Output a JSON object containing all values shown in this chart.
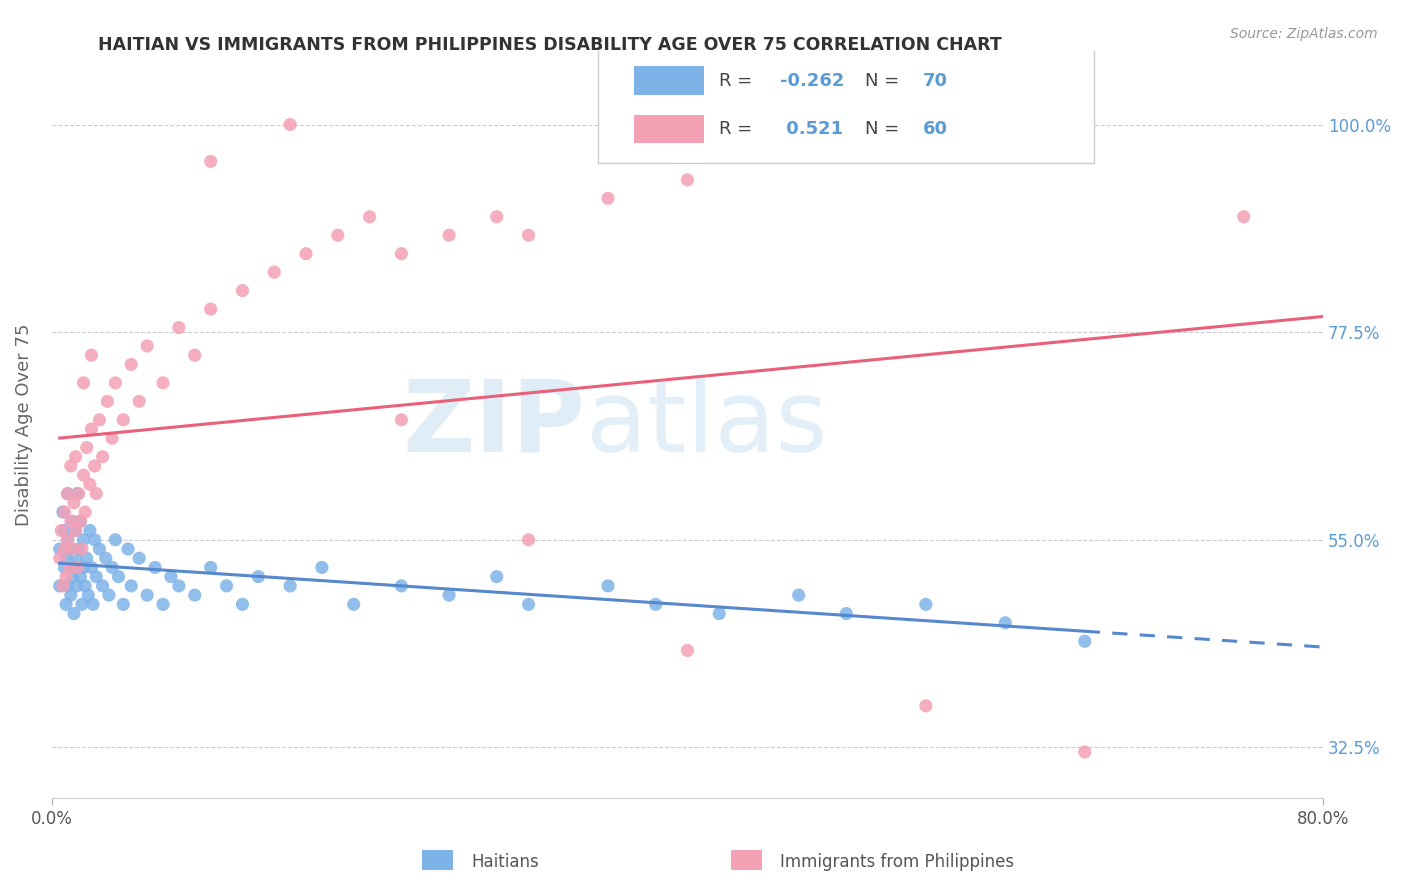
{
  "title": "HAITIAN VS IMMIGRANTS FROM PHILIPPINES DISABILITY AGE OVER 75 CORRELATION CHART",
  "source": "Source: ZipAtlas.com",
  "ylabel": "Disability Age Over 75",
  "ytick_labels": [
    "32.5%",
    "55.0%",
    "77.5%",
    "100.0%"
  ],
  "ytick_values": [
    0.325,
    0.55,
    0.775,
    1.0
  ],
  "xlim": [
    0.0,
    0.8
  ],
  "ylim": [
    0.27,
    1.08
  ],
  "haitian_R": -0.262,
  "haitian_N": 70,
  "philippines_R": 0.521,
  "philippines_N": 60,
  "haitian_color": "#7eb3e8",
  "philippines_color": "#f4a0b5",
  "haitian_line_color": "#5588cc",
  "philippines_line_color": "#e8607a",
  "watermark_text": "ZIPatlas",
  "legend_haitian": "Haitians",
  "legend_philippines": "Immigrants from Philippines",
  "haitian_x": [
    0.005,
    0.005,
    0.007,
    0.008,
    0.008,
    0.009,
    0.009,
    0.01,
    0.01,
    0.01,
    0.012,
    0.012,
    0.013,
    0.013,
    0.014,
    0.014,
    0.015,
    0.015,
    0.016,
    0.016,
    0.017,
    0.018,
    0.018,
    0.019,
    0.02,
    0.02,
    0.021,
    0.022,
    0.023,
    0.024,
    0.025,
    0.026,
    0.027,
    0.028,
    0.03,
    0.032,
    0.034,
    0.036,
    0.038,
    0.04,
    0.042,
    0.045,
    0.048,
    0.05,
    0.055,
    0.06,
    0.065,
    0.07,
    0.075,
    0.08,
    0.09,
    0.1,
    0.11,
    0.12,
    0.13,
    0.15,
    0.17,
    0.19,
    0.22,
    0.25,
    0.28,
    0.3,
    0.35,
    0.38,
    0.42,
    0.47,
    0.5,
    0.55,
    0.6,
    0.65
  ],
  "haitian_y": [
    0.54,
    0.5,
    0.58,
    0.52,
    0.56,
    0.48,
    0.53,
    0.5,
    0.55,
    0.6,
    0.49,
    0.54,
    0.51,
    0.57,
    0.52,
    0.47,
    0.56,
    0.53,
    0.5,
    0.6,
    0.54,
    0.51,
    0.57,
    0.48,
    0.52,
    0.55,
    0.5,
    0.53,
    0.49,
    0.56,
    0.52,
    0.48,
    0.55,
    0.51,
    0.54,
    0.5,
    0.53,
    0.49,
    0.52,
    0.55,
    0.51,
    0.48,
    0.54,
    0.5,
    0.53,
    0.49,
    0.52,
    0.48,
    0.51,
    0.5,
    0.49,
    0.52,
    0.5,
    0.48,
    0.51,
    0.5,
    0.52,
    0.48,
    0.5,
    0.49,
    0.51,
    0.48,
    0.5,
    0.48,
    0.47,
    0.49,
    0.47,
    0.48,
    0.46,
    0.44
  ],
  "philippines_x": [
    0.005,
    0.006,
    0.007,
    0.008,
    0.008,
    0.009,
    0.01,
    0.01,
    0.011,
    0.012,
    0.012,
    0.013,
    0.014,
    0.015,
    0.015,
    0.016,
    0.017,
    0.018,
    0.019,
    0.02,
    0.021,
    0.022,
    0.024,
    0.025,
    0.027,
    0.028,
    0.03,
    0.032,
    0.035,
    0.038,
    0.04,
    0.045,
    0.05,
    0.055,
    0.06,
    0.07,
    0.08,
    0.09,
    0.1,
    0.12,
    0.14,
    0.16,
    0.18,
    0.2,
    0.22,
    0.25,
    0.28,
    0.3,
    0.35,
    0.4,
    0.02,
    0.025,
    0.1,
    0.15,
    0.22,
    0.3,
    0.4,
    0.55,
    0.65,
    0.75
  ],
  "philippines_y": [
    0.53,
    0.56,
    0.5,
    0.54,
    0.58,
    0.51,
    0.55,
    0.6,
    0.52,
    0.57,
    0.63,
    0.54,
    0.59,
    0.56,
    0.64,
    0.52,
    0.6,
    0.57,
    0.54,
    0.62,
    0.58,
    0.65,
    0.61,
    0.67,
    0.63,
    0.6,
    0.68,
    0.64,
    0.7,
    0.66,
    0.72,
    0.68,
    0.74,
    0.7,
    0.76,
    0.72,
    0.78,
    0.75,
    0.8,
    0.82,
    0.84,
    0.86,
    0.88,
    0.9,
    0.86,
    0.88,
    0.9,
    0.88,
    0.92,
    0.94,
    0.72,
    0.75,
    0.96,
    1.0,
    0.68,
    0.55,
    0.43,
    0.37,
    0.32,
    0.9
  ]
}
